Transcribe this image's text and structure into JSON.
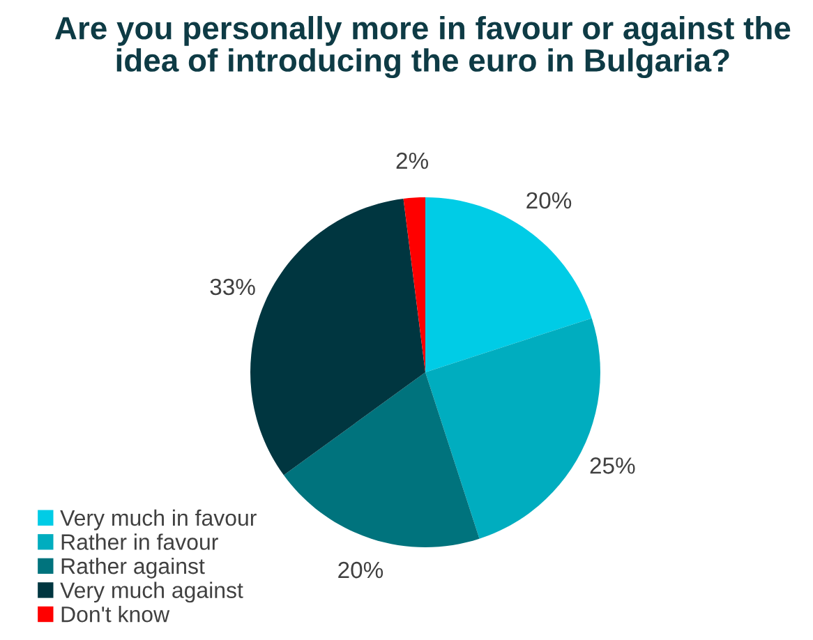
{
  "chart_data": {
    "type": "pie",
    "title": "Are you personally more in favour or against the idea of introducing the euro in Bulgaria?",
    "categories": [
      "Very much in favour",
      "Rather in favour",
      "Rather against",
      "Very much against",
      "Don't know"
    ],
    "values": [
      20,
      25,
      20,
      33,
      2
    ],
    "colors": [
      "#00cce6",
      "#00adbf",
      "#00737d",
      "#003640",
      "#ff0000"
    ],
    "value_labels": [
      "20%",
      "25%",
      "20%",
      "33%",
      "2%"
    ],
    "legend": "bottom left"
  }
}
